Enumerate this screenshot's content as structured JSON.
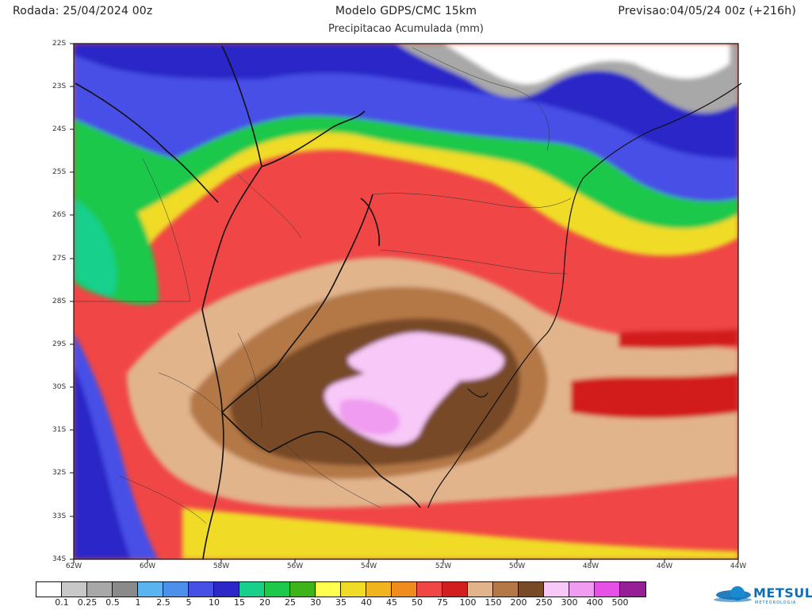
{
  "header": {
    "run": "Rodada: 25/04/2024 00z",
    "title": "Modelo GDPS/CMC 15km",
    "forecast": "Previsao:04/05/24 00z (+216h)",
    "subtitle": "Precipitacao Acumulada (mm)"
  },
  "axes": {
    "lat_labels": [
      "22S",
      "23S",
      "24S",
      "25S",
      "26S",
      "27S",
      "28S",
      "29S",
      "30S",
      "31S",
      "32S",
      "33S",
      "34S"
    ],
    "lon_labels": [
      "62W",
      "60W",
      "58W",
      "56W",
      "54W",
      "52W",
      "50W",
      "48W",
      "46W",
      "44W"
    ]
  },
  "legend": {
    "levels": [
      "0.1",
      "0.25",
      "0.5",
      "1",
      "2.5",
      "5",
      "10",
      "15",
      "20",
      "25",
      "30",
      "35",
      "40",
      "45",
      "50",
      "75",
      "100",
      "150",
      "200",
      "250",
      "300",
      "400",
      "500"
    ],
    "colors": [
      "#ffffff",
      "#c8c8c8",
      "#a8a8a8",
      "#8a8a8a",
      "#5ab4f0",
      "#4c90ec",
      "#4650e6",
      "#2c28c8",
      "#18d08c",
      "#1ec84a",
      "#3cb41a",
      "#ffff50",
      "#f0dc28",
      "#f0b41e",
      "#f08c1e",
      "#f04646",
      "#d21e1e",
      "#e2b48c",
      "#b47846",
      "#784a26",
      "#f8c8f8",
      "#f09cf0",
      "#e650e6",
      "#961e96"
    ]
  },
  "logo": {
    "text": "METSUL",
    "subtext": "METEOROLOGIA"
  }
}
